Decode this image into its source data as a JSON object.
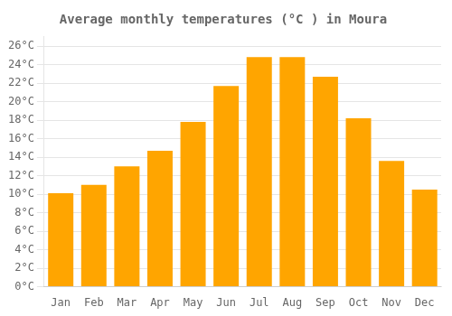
{
  "chart_data": {
    "type": "bar",
    "title": "Average monthly temperatures (°C ) in Moura",
    "categories": [
      "Jan",
      "Feb",
      "Mar",
      "Apr",
      "May",
      "Jun",
      "Jul",
      "Aug",
      "Sep",
      "Oct",
      "Nov",
      "Dec"
    ],
    "values": [
      10.1,
      11.0,
      13.0,
      14.7,
      17.8,
      21.7,
      24.8,
      24.8,
      22.7,
      18.2,
      13.6,
      10.5
    ],
    "color": "#FFA500",
    "ylim": [
      0,
      27
    ],
    "yticks": [
      {
        "value": 0,
        "label": "0°C"
      },
      {
        "value": 2,
        "label": "2°C"
      },
      {
        "value": 4,
        "label": "4°C"
      },
      {
        "value": 6,
        "label": "6°C"
      },
      {
        "value": 8,
        "label": "8°C"
      },
      {
        "value": 10,
        "label": "10°C"
      },
      {
        "value": 12,
        "label": "12°C"
      },
      {
        "value": 14,
        "label": "14°C"
      },
      {
        "value": 16,
        "label": "16°C"
      },
      {
        "value": 18,
        "label": "18°C"
      },
      {
        "value": 20,
        "label": "20°C"
      },
      {
        "value": 22,
        "label": "22°C"
      },
      {
        "value": 24,
        "label": "24°C"
      },
      {
        "value": 26,
        "label": "26°C"
      }
    ],
    "grid": true
  }
}
